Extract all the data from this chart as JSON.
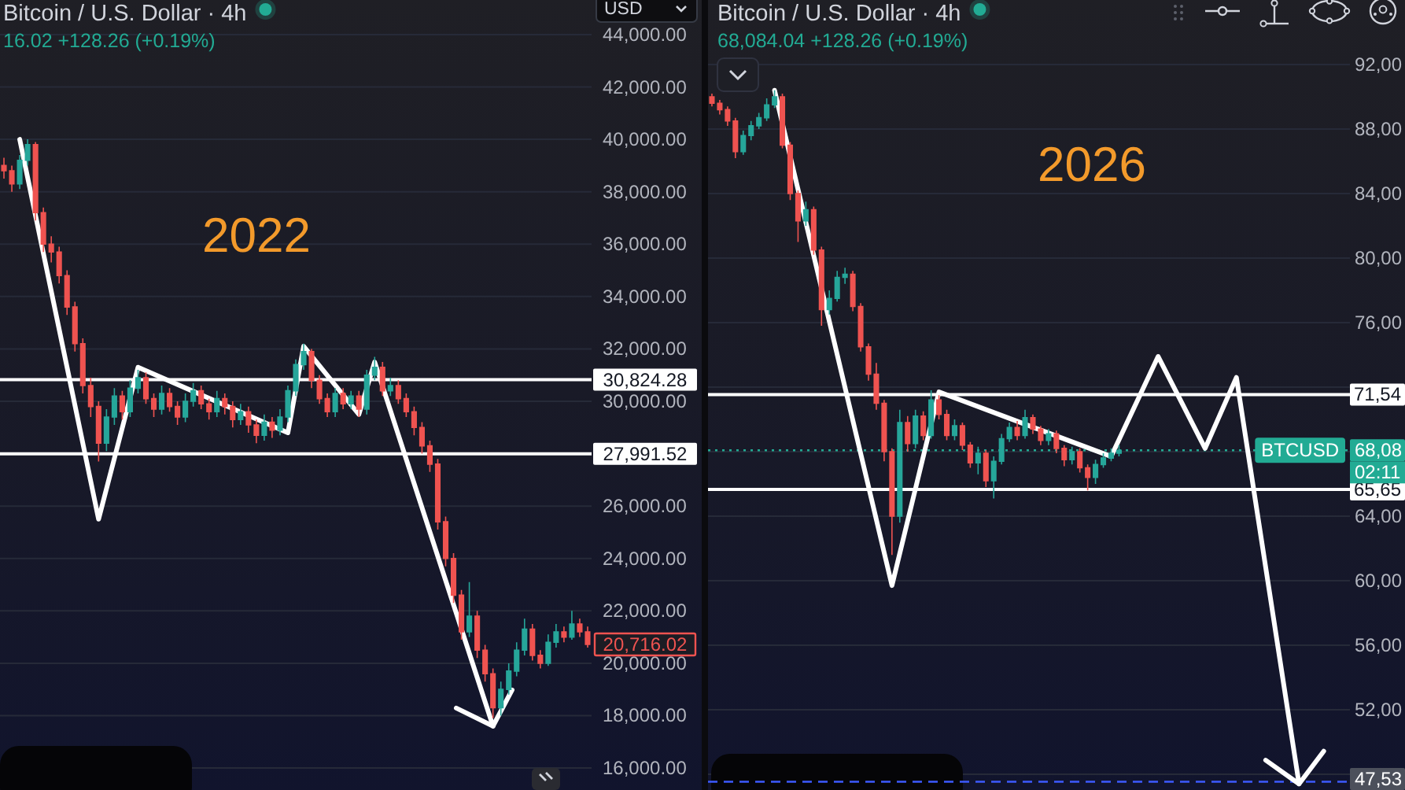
{
  "chart_data": [
    {
      "type": "candlestick",
      "title": "Bitcoin / U.S. Dollar · 4h",
      "subtitle": "16.02 +128.26 (+0.19%)",
      "categories": [
        null,
        null,
        null,
        null,
        null,
        null,
        null,
        null,
        null,
        null,
        null,
        null,
        null,
        null,
        null,
        null,
        null,
        null,
        null,
        null,
        null,
        null,
        null,
        null,
        null,
        null,
        null,
        null,
        null,
        null,
        null,
        null,
        null,
        null,
        null,
        null,
        null,
        null,
        null,
        null,
        null,
        null,
        null,
        null,
        null,
        null,
        null,
        null,
        null,
        null,
        null,
        null,
        null,
        null,
        null,
        null,
        null,
        null,
        null,
        null,
        null,
        null,
        null,
        null,
        null,
        null,
        null,
        null,
        null,
        null,
        null,
        null,
        null,
        null,
        null
      ],
      "ohlc": [
        [
          39000,
          39300,
          38500,
          38800
        ],
        [
          38800,
          39000,
          38000,
          38300
        ],
        [
          38300,
          39400,
          38100,
          39200
        ],
        [
          39200,
          40000,
          39000,
          39800
        ],
        [
          39800,
          39900,
          36900,
          37200
        ],
        [
          37200,
          37400,
          35700,
          36000
        ],
        [
          36000,
          36300,
          35300,
          35700
        ],
        [
          35700,
          35900,
          34500,
          34800
        ],
        [
          34800,
          35000,
          33300,
          33600
        ],
        [
          33600,
          33800,
          31900,
          32200
        ],
        [
          32200,
          32400,
          30300,
          30600
        ],
        [
          30600,
          30900,
          29400,
          29800
        ],
        [
          29800,
          30000,
          27700,
          28400
        ],
        [
          28400,
          29700,
          28100,
          29400
        ],
        [
          29400,
          30500,
          29100,
          30200
        ],
        [
          30200,
          30400,
          29300,
          29600
        ],
        [
          29600,
          30800,
          29400,
          30500
        ],
        [
          30500,
          31200,
          30300,
          30900
        ],
        [
          30900,
          31100,
          29900,
          30100
        ],
        [
          30100,
          30300,
          29400,
          29700
        ],
        [
          29700,
          30600,
          29500,
          30300
        ],
        [
          30300,
          30500,
          29600,
          29800
        ],
        [
          29800,
          30000,
          29100,
          29400
        ],
        [
          29400,
          30300,
          29200,
          30000
        ],
        [
          30000,
          30700,
          29800,
          30400
        ],
        [
          30400,
          30600,
          29700,
          29900
        ],
        [
          29900,
          30100,
          29300,
          29600
        ],
        [
          29600,
          30400,
          29400,
          30100
        ],
        [
          30100,
          30300,
          29500,
          29800
        ],
        [
          29800,
          30000,
          29000,
          29300
        ],
        [
          29300,
          29900,
          29100,
          29600
        ],
        [
          29600,
          29800,
          28800,
          29100
        ],
        [
          29100,
          29300,
          28400,
          28700
        ],
        [
          28700,
          29500,
          28500,
          29200
        ],
        [
          29200,
          29400,
          28600,
          28900
        ],
        [
          28900,
          29700,
          28700,
          29400
        ],
        [
          29400,
          30600,
          29200,
          30400
        ],
        [
          30400,
          31600,
          30200,
          31400
        ],
        [
          31400,
          32200,
          31200,
          31900
        ],
        [
          31900,
          32000,
          30500,
          30800
        ],
        [
          30800,
          31000,
          29900,
          30100
        ],
        [
          30100,
          30300,
          29400,
          29600
        ],
        [
          29600,
          30500,
          29400,
          30300
        ],
        [
          30300,
          30500,
          29700,
          29900
        ],
        [
          29900,
          30400,
          29700,
          30200
        ],
        [
          30200,
          30400,
          29400,
          29700
        ],
        [
          29700,
          31200,
          29500,
          31000
        ],
        [
          31000,
          31700,
          30800,
          31300
        ],
        [
          31300,
          31500,
          30200,
          30400
        ],
        [
          30400,
          30900,
          30200,
          30600
        ],
        [
          30600,
          30800,
          29900,
          30100
        ],
        [
          30100,
          30300,
          29400,
          29600
        ],
        [
          29600,
          29800,
          28700,
          29000
        ],
        [
          29000,
          29200,
          28000,
          28300
        ],
        [
          28300,
          28500,
          27300,
          27600
        ],
        [
          27600,
          27800,
          25100,
          25400
        ],
        [
          25400,
          25600,
          23700,
          24000
        ],
        [
          24000,
          24200,
          22300,
          22600
        ],
        [
          22600,
          22800,
          20900,
          21200
        ],
        [
          21200,
          23100,
          21000,
          21800
        ],
        [
          21800,
          22000,
          20200,
          20500
        ],
        [
          20500,
          20700,
          19300,
          19600
        ],
        [
          19600,
          19800,
          17900,
          18300
        ],
        [
          18300,
          19300,
          18000,
          19000
        ],
        [
          19000,
          20000,
          18800,
          19700
        ],
        [
          19700,
          20800,
          19500,
          20500
        ],
        [
          20500,
          21700,
          20300,
          21300
        ],
        [
          21300,
          21500,
          20100,
          20300
        ],
        [
          20300,
          20500,
          19800,
          20000
        ],
        [
          20000,
          21100,
          19900,
          20800
        ],
        [
          20800,
          21500,
          20600,
          21200
        ],
        [
          21200,
          21400,
          20800,
          21000
        ],
        [
          21000,
          22000,
          20900,
          21500
        ],
        [
          21500,
          21700,
          21000,
          21200
        ],
        [
          21200,
          21400,
          20600,
          20716.02
        ]
      ],
      "series": [
        {
          "type": "line",
          "color": "#ffffff",
          "values": [
            null,
            null,
            40000,
            null,
            null,
            null,
            null,
            null,
            null,
            null,
            null,
            null,
            25500,
            null,
            null,
            null,
            null,
            31300,
            null,
            null,
            null,
            null,
            null,
            null,
            null,
            null,
            null,
            null,
            null,
            null,
            null,
            null,
            null,
            null,
            null,
            null,
            28800,
            null,
            32100,
            null,
            null,
            null,
            null,
            null,
            null,
            29500,
            null,
            31500,
            null,
            null,
            null,
            null,
            null,
            null,
            null,
            null,
            null,
            null,
            null,
            null,
            null,
            null,
            17600,
            null,
            null,
            null,
            null,
            null,
            null,
            null,
            null,
            null,
            null,
            null,
            null
          ]
        }
      ],
      "ylim": [
        15160,
        45320
      ],
      "yticks": [
        {
          "value": 16000,
          "label": "16,000.00"
        },
        {
          "value": 18000,
          "label": "18,000.00"
        },
        {
          "value": 20000,
          "label": "20,000.00"
        },
        {
          "value": 22000,
          "label": "22,000.00"
        },
        {
          "value": 24000,
          "label": "24,000.00"
        },
        {
          "value": 26000,
          "label": "26,000.00"
        },
        {
          "value": 28000,
          "label": null
        },
        {
          "value": 30000,
          "label": "30,000.00"
        },
        {
          "value": 32000,
          "label": "32,000.00"
        },
        {
          "value": 34000,
          "label": "34,000.00"
        },
        {
          "value": 36000,
          "label": "36,000.00"
        },
        {
          "value": 38000,
          "label": "38,000.00"
        },
        {
          "value": 40000,
          "label": "40,000.00"
        },
        {
          "value": 42000,
          "label": "42,000.00"
        },
        {
          "value": 44000,
          "label": "44,000.00"
        }
      ],
      "tick_labels": "y",
      "grid": "y",
      "ref_lines": [
        {
          "axis": "y",
          "value": 30824.28,
          "label": "30,824.28",
          "color": "#ffffff"
        },
        {
          "axis": "y",
          "value": 27991.52,
          "label": "27,991.52",
          "color": "#ffffff"
        }
      ],
      "annotations": [
        "2022",
        "USD",
        "20,716.02"
      ]
    },
    {
      "type": "candlestick",
      "title": "Bitcoin / U.S. Dollar · 4h",
      "subtitle": "68,084.04 +128.26 (+0.19%)",
      "categories": [
        null,
        null,
        null,
        null,
        null,
        null,
        null,
        null,
        null,
        null,
        null,
        null,
        null,
        null,
        null,
        null,
        null,
        null,
        null,
        null,
        null,
        null,
        null,
        null,
        null,
        null,
        null,
        null,
        null,
        null,
        null,
        null,
        null,
        null,
        null,
        null,
        null,
        null,
        null,
        null,
        null,
        null,
        null,
        null,
        null,
        null,
        null,
        null,
        null,
        null,
        null,
        null,
        null,
        null,
        null,
        null,
        null,
        null,
        null,
        null,
        null,
        null,
        null,
        null,
        null,
        null,
        null,
        null,
        null,
        null,
        null,
        null,
        null,
        null,
        null,
        null,
        null,
        null,
        null,
        null,
        null,
        null
      ],
      "ohlc": [
        [
          90.0,
          90.2,
          89.4,
          89.6
        ],
        [
          89.6,
          89.8,
          88.9,
          89.2
        ],
        [
          89.2,
          89.4,
          88.2,
          88.5
        ],
        [
          88.5,
          88.7,
          86.2,
          86.6
        ],
        [
          86.6,
          87.9,
          86.4,
          87.6
        ],
        [
          87.6,
          88.5,
          87.3,
          88.2
        ],
        [
          88.2,
          89.0,
          88.0,
          88.7
        ],
        [
          88.7,
          89.9,
          88.5,
          89.5
        ],
        [
          89.5,
          90.4,
          89.3,
          90.0
        ],
        [
          90.0,
          90.2,
          86.8,
          87.0
        ],
        [
          87.0,
          87.2,
          83.6,
          84.0
        ],
        [
          84.0,
          84.2,
          81.0,
          82.3
        ],
        [
          82.3,
          83.5,
          82.0,
          83.0
        ],
        [
          83.0,
          83.2,
          80.2,
          80.5
        ],
        [
          80.5,
          80.7,
          75.8,
          76.8
        ],
        [
          76.8,
          78.0,
          76.5,
          77.5
        ],
        [
          77.5,
          79.2,
          77.3,
          78.8
        ],
        [
          78.8,
          79.4,
          78.4,
          79.0
        ],
        [
          79.0,
          79.2,
          76.7,
          77.0
        ],
        [
          77.0,
          77.2,
          74.2,
          74.5
        ],
        [
          74.5,
          74.7,
          72.4,
          72.8
        ],
        [
          72.8,
          73.5,
          70.6,
          71.0
        ],
        [
          71.0,
          71.2,
          67.4,
          68.0
        ],
        [
          68.0,
          68.2,
          61.6,
          64.0
        ],
        [
          64.0,
          70.6,
          63.6,
          69.8
        ],
        [
          69.8,
          70.2,
          68.0,
          68.5
        ],
        [
          68.5,
          70.6,
          68.2,
          70.2
        ],
        [
          70.2,
          70.5,
          68.7,
          69.0
        ],
        [
          69.0,
          71.8,
          68.8,
          71.2
        ],
        [
          71.2,
          71.5,
          70.0,
          70.3
        ],
        [
          70.3,
          70.6,
          68.7,
          69.0
        ],
        [
          69.0,
          70.0,
          68.7,
          69.6
        ],
        [
          69.6,
          69.8,
          68.1,
          68.4
        ],
        [
          68.4,
          68.6,
          67.0,
          67.3
        ],
        [
          67.3,
          68.3,
          66.6,
          67.9
        ],
        [
          67.9,
          68.1,
          65.8,
          66.2
        ],
        [
          66.2,
          67.7,
          65.1,
          67.4
        ],
        [
          67.4,
          69.1,
          67.2,
          68.8
        ],
        [
          68.8,
          69.8,
          68.6,
          69.5
        ],
        [
          69.5,
          69.9,
          68.7,
          69.0
        ],
        [
          69.0,
          70.6,
          68.8,
          70.1
        ],
        [
          70.1,
          70.3,
          69.1,
          69.4
        ],
        [
          69.4,
          69.6,
          68.4,
          68.7
        ],
        [
          68.7,
          69.4,
          68.4,
          69.1
        ],
        [
          69.1,
          69.3,
          67.9,
          68.2
        ],
        [
          68.2,
          68.4,
          67.1,
          67.5
        ],
        [
          67.5,
          68.3,
          67.2,
          68.0
        ],
        [
          68.0,
          68.2,
          66.7,
          67.0
        ],
        [
          67.0,
          67.2,
          65.6,
          66.4
        ],
        [
          66.4,
          67.5,
          66.0,
          67.2
        ],
        [
          67.2,
          67.9,
          67.0,
          67.6
        ],
        [
          67.6,
          68.2,
          67.4,
          67.9
        ],
        [
          67.9,
          68.4,
          67.7,
          68.08
        ],
        null,
        null,
        null,
        null,
        null,
        null,
        null,
        null,
        null,
        null,
        null,
        null,
        null,
        null,
        null,
        null,
        null,
        null,
        null,
        null,
        null,
        null,
        null,
        null,
        null,
        null,
        null,
        null,
        null
      ],
      "series": [
        {
          "type": "line",
          "color": "#ffffff",
          "values": [
            null,
            null,
            null,
            null,
            null,
            null,
            null,
            null,
            90.4,
            null,
            null,
            null,
            null,
            null,
            null,
            null,
            null,
            null,
            null,
            null,
            null,
            null,
            null,
            59.7,
            null,
            null,
            null,
            null,
            null,
            71.7,
            null,
            null,
            null,
            null,
            null,
            null,
            null,
            null,
            null,
            null,
            null,
            null,
            null,
            null,
            null,
            null,
            null,
            null,
            null,
            null,
            null,
            67.7,
            null,
            null,
            null,
            null,
            null,
            73.9,
            null,
            null,
            null,
            null,
            null,
            68.2,
            null,
            null,
            null,
            72.6,
            null,
            null,
            null,
            null,
            null,
            null,
            null,
            47.4,
            null,
            null,
            null,
            null,
            null,
            null
          ]
        }
      ],
      "ylim": [
        47.02,
        96
      ],
      "yticks": [
        {
          "value": 48,
          "label": null
        },
        {
          "value": 52,
          "label": "52,00"
        },
        {
          "value": 56,
          "label": "56,00"
        },
        {
          "value": 60,
          "label": "60,00"
        },
        {
          "value": 64,
          "label": "64,00"
        },
        {
          "value": 68,
          "label": null
        },
        {
          "value": 72,
          "label": null
        },
        {
          "value": 76,
          "label": "76,00"
        },
        {
          "value": 80,
          "label": "80,00"
        },
        {
          "value": 84,
          "label": "84,00"
        },
        {
          "value": 88,
          "label": "88,00"
        },
        {
          "value": 92,
          "label": "92,00"
        }
      ],
      "tick_labels": "y",
      "grid": "y",
      "ref_lines": [
        {
          "axis": "y",
          "value": 71.54,
          "label": "71,54",
          "color": "#ffffff"
        },
        {
          "axis": "y",
          "value": 68.08,
          "label": "68,08",
          "color": "#22ab94",
          "line_style": "dotted"
        },
        {
          "axis": "y",
          "value": 65.65,
          "label": "65,65",
          "color": "#ffffff"
        },
        {
          "axis": "y",
          "value": 47.53,
          "label": "47,53",
          "color": "#3d5afe",
          "line_style": "dashed"
        }
      ],
      "annotations": [
        "2026",
        {
          "text": "BTCUSD",
          "y": 68.08
        },
        {
          "text": "02:11",
          "y": 68.08
        }
      ]
    }
  ]
}
